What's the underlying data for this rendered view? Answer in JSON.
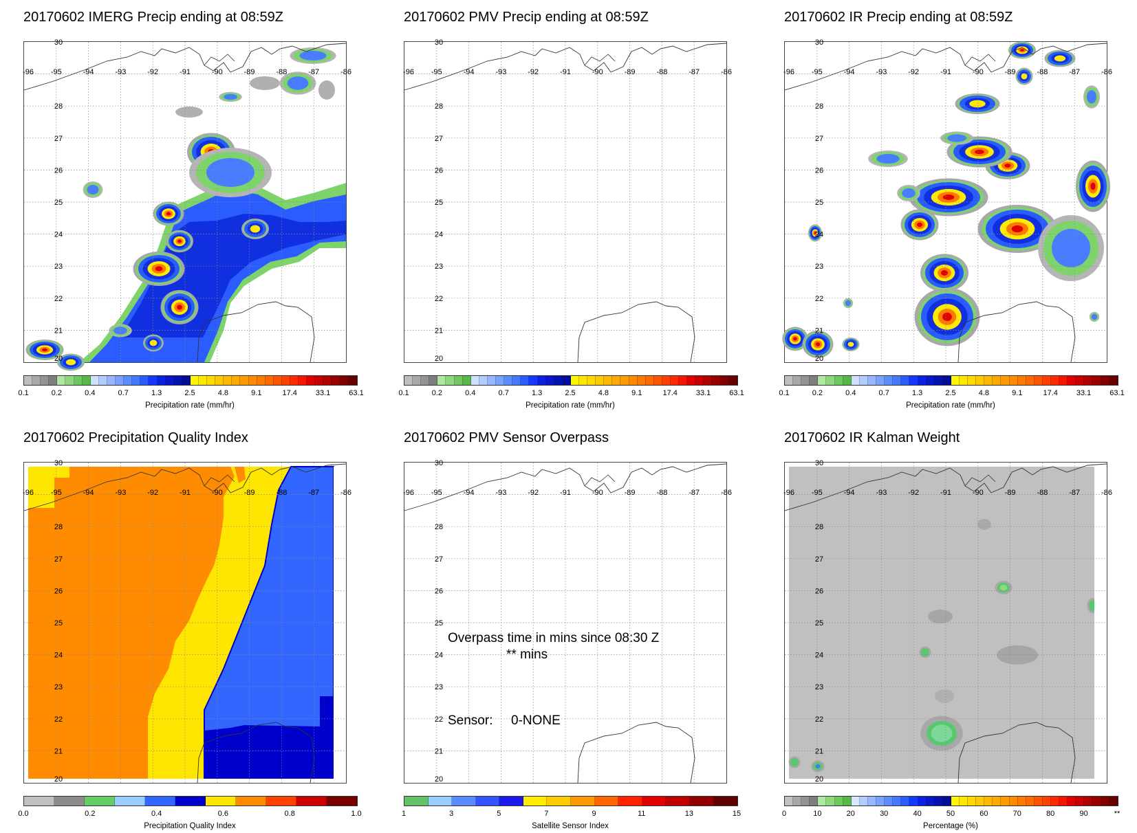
{
  "map_axes": {
    "lon_labels": [
      "-96",
      "-95",
      "-94",
      "-93",
      "-92",
      "-91",
      "-90",
      "-89",
      "-88",
      "-87",
      "-86"
    ],
    "lat_labels": [
      "30",
      "28",
      "27",
      "26",
      "25",
      "24",
      "23",
      "22",
      "21",
      "20"
    ],
    "grid_style": "dotted",
    "lon_range": [
      -96,
      -86
    ],
    "lat_range": [
      20,
      30
    ]
  },
  "colorbars": {
    "precip": {
      "title": "Precipitation rate (mm/hr)",
      "ticks": [
        "0.1",
        "0.2",
        "0.4",
        "0.7",
        "1.3",
        "2.5",
        "4.8",
        "9.1",
        "17.4",
        "33.1",
        "63.1"
      ],
      "colors": [
        "#bebebe",
        "#a8a8a8",
        "#939393",
        "#7e7e7e",
        "#aee8a0",
        "#8fd87e",
        "#6fc85f",
        "#58b84a",
        "#cfe0ff",
        "#b3ccff",
        "#96b7ff",
        "#79a2ff",
        "#5c8dff",
        "#4378ff",
        "#2a5cff",
        "#1438ff",
        "#0b20e0",
        "#0818c8",
        "#0612b0",
        "#050c98",
        "#fff700",
        "#ffe800",
        "#ffd900",
        "#ffca00",
        "#ffba00",
        "#ffaa00",
        "#ff9a00",
        "#ff8a00",
        "#ff7a00",
        "#ff6a00",
        "#ff5500",
        "#ff4000",
        "#ff2a00",
        "#f51500",
        "#e00000",
        "#c80000",
        "#b00000",
        "#980000",
        "#800000",
        "#680000"
      ]
    },
    "quality": {
      "title": "Precipitation Quality Index",
      "ticks": [
        "0.0",
        "0.2",
        "0.4",
        "0.6",
        "0.8",
        "1.0"
      ],
      "colors": [
        "#c0c0c0",
        "#8c8c8c",
        "#66cc66",
        "#99ccff",
        "#3366ff",
        "#0000cc",
        "#ffe600",
        "#ff8c00",
        "#ff4000",
        "#cc0000",
        "#7a0000"
      ]
    },
    "sensor": {
      "title": "Satellite Sensor Index",
      "ticks": [
        "1",
        "3",
        "5",
        "7",
        "9",
        "11",
        "13",
        "15"
      ],
      "colors": [
        "#66c266",
        "#99ccff",
        "#5b8cff",
        "#3355ff",
        "#1a1aee",
        "#ffee00",
        "#ffcc00",
        "#ff9900",
        "#ff6600",
        "#ff2200",
        "#e00000",
        "#c00000",
        "#900000",
        "#600000"
      ]
    },
    "kalman": {
      "title": "Percentage (%)",
      "ticks": [
        "0",
        "10",
        "20",
        "30",
        "40",
        "50",
        "60",
        "70",
        "80",
        "90",
        "**"
      ],
      "colors": [
        "#c0c0c0",
        "#a8a8a8",
        "#939393",
        "#7e7e7e",
        "#aee8a0",
        "#8fd87e",
        "#6fc85f",
        "#58b84a",
        "#d9e8ff",
        "#b3ccff",
        "#96b7ff",
        "#79a2ff",
        "#5c8dff",
        "#4378ff",
        "#2a5cff",
        "#1438ff",
        "#0b20e0",
        "#0818c8",
        "#0612b0",
        "#050c98",
        "#fff700",
        "#ffe800",
        "#ffd900",
        "#ffca00",
        "#ffba00",
        "#ffaa00",
        "#ff9a00",
        "#ff8a00",
        "#ff7a00",
        "#ff6a00",
        "#ff5500",
        "#ff4000",
        "#ff2a00",
        "#f51500",
        "#e00000",
        "#c80000",
        "#b00000",
        "#980000",
        "#800000",
        "#680000"
      ]
    }
  },
  "panels": {
    "p1": {
      "title": "20170602 IMERG Precip ending at 08:59Z"
    },
    "p2": {
      "title": "20170602 PMV Precip ending at 08:59Z"
    },
    "p3": {
      "title": "20170602 IR Precip ending at 08:59Z"
    },
    "p4": {
      "title": "20170602 Precipitation Quality Index"
    },
    "p5": {
      "title": "20170602 PMV Sensor Overpass",
      "overpass_line1": "Overpass time in mins since 08:30 Z",
      "overpass_line2": "** mins",
      "sensor_label": "Sensor:",
      "sensor_value": "0-NONE"
    },
    "p6": {
      "title": "20170602 IR Kalman Weight"
    }
  }
}
